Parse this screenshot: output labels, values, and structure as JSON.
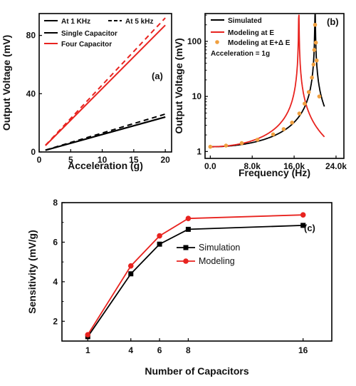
{
  "colors": {
    "black": "#000000",
    "red": "#e8231f",
    "orange": "#f0a040"
  },
  "chart_data": [
    {
      "panel": "(a)",
      "type": "line",
      "xlabel": "Acceleration (g)",
      "ylabel": "Output Voltage (mV)",
      "xlim": [
        0,
        21
      ],
      "ylim": [
        0,
        95
      ],
      "xticks": [
        0,
        5,
        10,
        15,
        20
      ],
      "yticks": [
        0,
        40,
        80
      ],
      "series": [
        {
          "name": "At 1 KHz",
          "legend": "At 1 KHz",
          "dash": false,
          "color": "black",
          "x": [
            1,
            20
          ],
          "y": [
            1.2,
            24
          ]
        },
        {
          "name": "At 5 kHz",
          "legend": "At 5 kHz",
          "dash": true,
          "color": "black",
          "x": [
            1,
            20
          ],
          "y": [
            1.3,
            26
          ]
        },
        {
          "name": "Single Capacitor",
          "legend": "Single Capacitor",
          "dash": false,
          "color": "black",
          "x": [
            1,
            20
          ],
          "y": [
            1.2,
            24
          ]
        },
        {
          "name": "Four Capacitor",
          "legend": "Four Capacitor",
          "dash": false,
          "color": "red",
          "x": [
            1,
            20
          ],
          "y": [
            4.4,
            87
          ]
        },
        {
          "name": "Four Capacitor (5 kHz)",
          "legend": "",
          "dash": true,
          "color": "red",
          "x": [
            1,
            20
          ],
          "y": [
            4.6,
            92
          ]
        }
      ]
    },
    {
      "panel": "(b)",
      "type": "line",
      "xlabel": "Frequency (Hz)",
      "ylabel": "Output Voltage (mV)",
      "xlim": [
        -1000,
        25500
      ],
      "ylim": [
        0.75,
        320
      ],
      "yscale": "log",
      "xticks": [
        0,
        8000,
        16000,
        24000
      ],
      "xticklabels": [
        "0.0",
        "8.0k",
        "16.0k",
        "24.0k"
      ],
      "yticks": [
        1,
        10,
        100
      ],
      "annotation": "Acceleration = 1g",
      "legend": [
        "Simulated",
        "Modeling at E",
        "Modeling at E+Δ E"
      ],
      "series": [
        {
          "name": "Simulated",
          "color": "black",
          "resonance": 20000,
          "xrange": [
            0,
            21800
          ],
          "style": "line"
        },
        {
          "name": "Modeling at E",
          "color": "red",
          "resonance": 16900,
          "xrange": [
            0,
            21800
          ],
          "style": "line"
        },
        {
          "name": "Modeling at E+Δ E",
          "color": "orange",
          "style": "markers",
          "x": [
            0,
            3000,
            6000,
            9000,
            12000,
            14000,
            15600,
            17000,
            18000,
            18800,
            19400,
            19700,
            19850,
            20000,
            20150,
            20300,
            20800
          ],
          "y": [
            1.22,
            1.28,
            1.42,
            1.64,
            2.05,
            2.55,
            3.35,
            4.9,
            7.4,
            12,
            22,
            38,
            70,
            200,
            95,
            45,
            10
          ]
        }
      ]
    },
    {
      "panel": "(c)",
      "type": "line",
      "xlabel": "Number of Capacitors",
      "ylabel": "Sensitivity (mV/g)",
      "categories": [
        "1",
        "4",
        "6",
        "8",
        "16"
      ],
      "x": [
        1,
        4,
        6,
        8,
        16
      ],
      "xlim": [
        -0.8,
        18
      ],
      "ylim": [
        1,
        8
      ],
      "yticks": [
        2,
        4,
        6,
        8
      ],
      "series": [
        {
          "name": "Simulation",
          "color": "black",
          "marker": "square",
          "values": [
            1.22,
            4.4,
            5.9,
            6.65,
            6.85
          ]
        },
        {
          "name": "Modeling",
          "color": "red",
          "marker": "circle",
          "values": [
            1.32,
            4.8,
            6.32,
            7.2,
            7.38
          ]
        }
      ]
    }
  ]
}
